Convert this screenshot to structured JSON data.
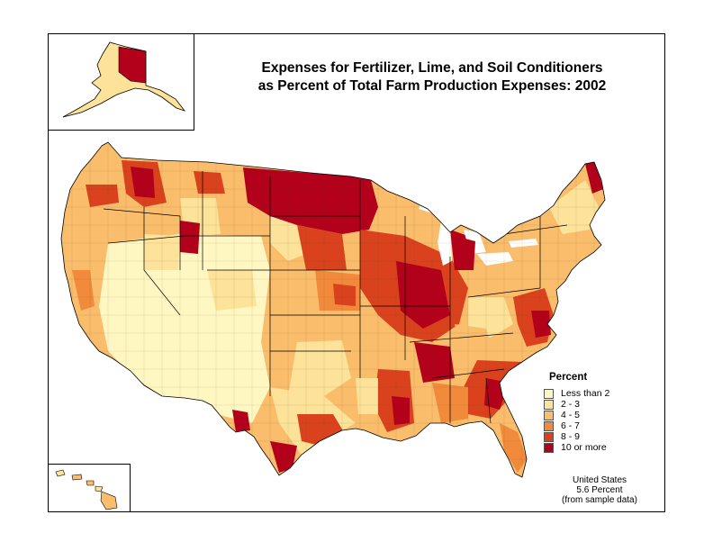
{
  "title_line1": "Expenses for Fertilizer, Lime, and Soil Conditioners",
  "title_line2": "as Percent of Total Farm Production Expenses:  2002",
  "legend": {
    "title": "Percent",
    "items": [
      {
        "label": "Less than 2",
        "color": "#fff7c2"
      },
      {
        "label": "2 - 3",
        "color": "#fde39a"
      },
      {
        "label": "4 - 5",
        "color": "#f9bd6b"
      },
      {
        "label": "6 - 7",
        "color": "#f28a3c"
      },
      {
        "label": "8 - 9",
        "color": "#d9421d"
      },
      {
        "label": "10 or more",
        "color": "#b3001b"
      }
    ]
  },
  "summary": {
    "line1": "United States",
    "line2": "5.6 Percent",
    "line3": "(from sample data)"
  }
}
